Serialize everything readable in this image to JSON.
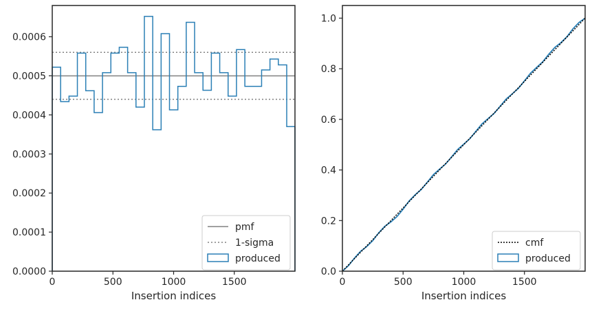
{
  "colors": {
    "produced": "#2a7fb5",
    "pmf": "#808080",
    "sigma": "#808080",
    "cmf": "#000000",
    "axes": "#262626"
  },
  "chart_data": [
    {
      "type": "step-histogram",
      "xlabel": "Insertion indices",
      "ylabel": "",
      "xlim": [
        0,
        2000
      ],
      "ylim": [
        0,
        0.00068
      ],
      "xticks": [
        0,
        500,
        1000,
        1500
      ],
      "xtick_labels": [
        "0",
        "500",
        "1000",
        "1500"
      ],
      "yticks": [
        0,
        0.0001,
        0.0002,
        0.0003,
        0.0004,
        0.0005,
        0.0006
      ],
      "ytick_labels": [
        "0.0000",
        "0.0001",
        "0.0002",
        "0.0003",
        "0.0004",
        "0.0005",
        "0.0006"
      ],
      "grid": false,
      "legend_position": "lower-right",
      "legend": [
        "pmf",
        "1-sigma",
        "produced"
      ],
      "pmf": 0.0005,
      "sigma_band": [
        0.00044,
        0.00056
      ],
      "bin_edges": [
        0,
        69,
        138,
        207,
        276,
        345,
        414,
        483,
        552,
        621,
        690,
        759,
        828,
        897,
        966,
        1035,
        1104,
        1173,
        1242,
        1311,
        1380,
        1449,
        1518,
        1587,
        1656,
        1725,
        1794,
        1863,
        1932,
        2000
      ],
      "produced": [
        0.000522,
        0.000434,
        0.000448,
        0.000558,
        0.000462,
        0.000406,
        0.000508,
        0.000558,
        0.000573,
        0.000508,
        0.00042,
        0.000652,
        0.000362,
        0.000608,
        0.000413,
        0.000473,
        0.000637,
        0.000508,
        0.000463,
        0.000558,
        0.000508,
        0.000448,
        0.000567,
        0.000473,
        0.000473,
        0.000515,
        0.000543,
        0.000528,
        0.00037
      ]
    },
    {
      "type": "cumulative-step",
      "xlabel": "Insertion indices",
      "ylabel": "",
      "xlim": [
        0,
        2000
      ],
      "ylim": [
        0,
        1.05
      ],
      "xticks": [
        0,
        500,
        1000,
        1500
      ],
      "xtick_labels": [
        "0",
        "500",
        "1000",
        "1500"
      ],
      "yticks": [
        0,
        0.2,
        0.4,
        0.6,
        0.8,
        1.0
      ],
      "ytick_labels": [
        "0.0",
        "0.2",
        "0.4",
        "0.6",
        "0.8",
        "1.0"
      ],
      "grid": false,
      "legend_position": "lower-right",
      "legend": [
        "cmf",
        "produced"
      ],
      "cmf": {
        "x": [
          0,
          2000
        ],
        "y": [
          0,
          1.0
        ]
      },
      "produced": {
        "x": [
          0,
          100,
          200,
          300,
          400,
          500,
          600,
          700,
          800,
          900,
          1000,
          1100,
          1200,
          1300,
          1400,
          1500,
          1600,
          1700,
          1800,
          1900,
          2000
        ],
        "y": [
          0,
          0.052,
          0.097,
          0.152,
          0.195,
          0.245,
          0.302,
          0.352,
          0.403,
          0.452,
          0.502,
          0.553,
          0.603,
          0.652,
          0.701,
          0.752,
          0.805,
          0.857,
          0.903,
          0.958,
          1.0
        ]
      }
    }
  ]
}
